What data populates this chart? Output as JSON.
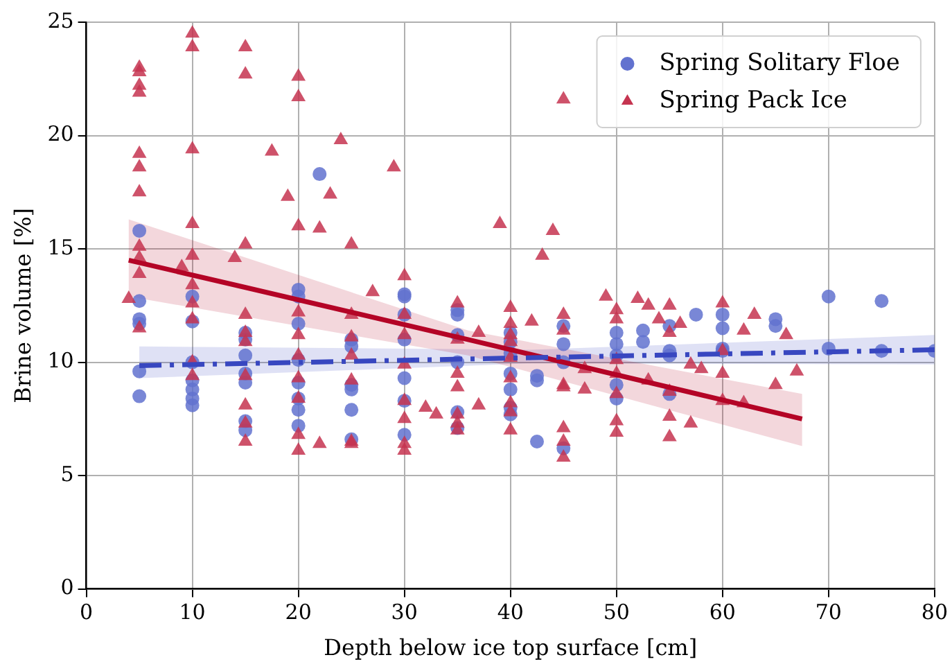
{
  "chart_data": {
    "type": "scatter",
    "xlabel": "Depth below ice top surface [cm]",
    "ylabel": "Brine volume [%]",
    "xlim": [
      0,
      80
    ],
    "xticks": [
      0,
      10,
      20,
      30,
      40,
      50,
      60,
      70,
      80
    ],
    "ylim": [
      0,
      25
    ],
    "yticks": [
      0,
      5,
      10,
      15,
      20,
      25
    ],
    "grid": true,
    "legend": "top right",
    "series": [
      {
        "name": "Spring Solitary Floe",
        "marker": "circle",
        "color": "#6272cf",
        "x": [
          5,
          5,
          5,
          5,
          5,
          5,
          10,
          10,
          10,
          10,
          10,
          10,
          10,
          15,
          15,
          15,
          15,
          15,
          15,
          15,
          20,
          20,
          20,
          20,
          20,
          20,
          20,
          20,
          22,
          25,
          25,
          25,
          25,
          25,
          25,
          30,
          30,
          30,
          30,
          30,
          30,
          30,
          35,
          35,
          35,
          35,
          35,
          35,
          40,
          40,
          40,
          40,
          40,
          40,
          40,
          42.5,
          42.5,
          42.5,
          45,
          45,
          45,
          45,
          50,
          50,
          50,
          50,
          50,
          52.5,
          52.5,
          55,
          55,
          55,
          55,
          57.5,
          60,
          60,
          60,
          60,
          65,
          65,
          70,
          70,
          75,
          75,
          80
        ],
        "values": [
          15.8,
          12.7,
          11.9,
          11.7,
          9.6,
          8.5,
          12.9,
          11.8,
          10.0,
          9.2,
          8.8,
          8.4,
          8.1,
          11.3,
          11.0,
          10.3,
          9.5,
          9.1,
          7.4,
          7.0,
          13.2,
          12.9,
          11.7,
          10.1,
          9.1,
          8.4,
          7.9,
          7.2,
          18.3,
          11.0,
          10.7,
          9.0,
          8.8,
          7.9,
          6.6,
          13.0,
          12.9,
          12.1,
          11.0,
          9.3,
          8.3,
          6.8,
          12.3,
          12.1,
          11.2,
          10.0,
          7.8,
          7.1,
          11.3,
          10.9,
          10.4,
          9.5,
          8.8,
          8.0,
          7.7,
          9.4,
          9.2,
          6.5,
          11.6,
          10.8,
          10.0,
          6.2,
          11.3,
          10.8,
          10.3,
          9.0,
          8.4,
          11.4,
          10.9,
          11.6,
          10.5,
          10.3,
          8.6,
          12.1,
          12.1,
          11.5,
          10.6,
          10.5,
          11.9,
          11.6,
          12.9,
          10.6,
          12.7,
          10.5,
          10.5
        ]
      },
      {
        "name": "Spring Pack Ice",
        "marker": "triangle",
        "color": "#c53450",
        "x": [
          4,
          5,
          5,
          5,
          5,
          5,
          5,
          5,
          5,
          5,
          5,
          5,
          9,
          10,
          10,
          10,
          10,
          10,
          10,
          10,
          10,
          10,
          10,
          14,
          15,
          15,
          15,
          15,
          15,
          15,
          15,
          15,
          15,
          15,
          17.5,
          19,
          20,
          20,
          20,
          20,
          20,
          20,
          20,
          20,
          20,
          20,
          22,
          22,
          23,
          24,
          25,
          25,
          25,
          25,
          25,
          25,
          25,
          27,
          29,
          30,
          30,
          30,
          30,
          30,
          30,
          30,
          30,
          32,
          33,
          35,
          35,
          35,
          35,
          35,
          35,
          35,
          37,
          37,
          39,
          40,
          40,
          40,
          40,
          40,
          40,
          40,
          40,
          40,
          42,
          43,
          44,
          45,
          45,
          45,
          45,
          45,
          45,
          45,
          45,
          47,
          47,
          49,
          50,
          50,
          50,
          50,
          50,
          50,
          50,
          52,
          53,
          53,
          54,
          55,
          55,
          55,
          55,
          55,
          56,
          57,
          57,
          58,
          60,
          60,
          60,
          60,
          62,
          62,
          63,
          65,
          66,
          67
        ],
        "values": [
          12.8,
          23.0,
          22.8,
          22.2,
          21.9,
          19.2,
          18.6,
          17.5,
          15.1,
          14.6,
          13.9,
          11.5,
          14.2,
          24.5,
          23.9,
          19.4,
          16.1,
          14.7,
          13.4,
          12.6,
          11.9,
          10.0,
          9.4,
          14.6,
          23.9,
          22.7,
          15.2,
          12.1,
          11.3,
          10.9,
          9.4,
          8.1,
          7.3,
          6.5,
          19.3,
          17.3,
          22.6,
          21.7,
          16.0,
          12.2,
          11.2,
          10.3,
          9.3,
          8.4,
          6.8,
          6.1,
          6.4,
          15.9,
          17.4,
          19.8,
          15.2,
          12.1,
          11.1,
          10.3,
          9.2,
          6.5,
          6.4,
          13.1,
          18.6,
          13.8,
          12.1,
          11.2,
          9.9,
          8.3,
          7.5,
          6.4,
          6.1,
          8.0,
          7.7,
          12.6,
          11.0,
          9.5,
          8.9,
          7.7,
          7.3,
          7.0,
          8.1,
          11.3,
          16.1,
          12.4,
          11.7,
          11.2,
          10.9,
          10.2,
          9.3,
          8.2,
          7.8,
          7.0,
          11.8,
          14.7,
          15.8,
          21.6,
          12.1,
          11.4,
          9.0,
          8.9,
          7.1,
          6.5,
          5.8,
          8.8,
          9.7,
          12.9,
          12.3,
          11.9,
          10.1,
          9.5,
          8.6,
          7.4,
          6.9,
          12.8,
          12.5,
          9.2,
          11.9,
          12.5,
          11.3,
          8.7,
          7.6,
          6.7,
          11.7,
          9.9,
          7.3,
          9.7,
          12.6,
          10.5,
          9.5,
          8.3,
          11.4,
          8.2,
          12.1,
          9.0,
          11.2,
          9.6
        ]
      },
      {
        "type": "line",
        "line_style": "dashed",
        "color": "#3847c0",
        "x": [
          5,
          42,
          80
        ],
        "values": [
          9.85,
          10.2,
          10.55
        ],
        "lower": [
          9.3,
          9.95,
          9.9
        ],
        "upper": [
          10.7,
          10.55,
          11.2
        ]
      },
      {
        "type": "line",
        "line_style": "solid",
        "color": "#b40426",
        "x": [
          4,
          36,
          67.5
        ],
        "values": [
          14.5,
          11.0,
          7.5
        ],
        "lower": [
          12.9,
          10.3,
          6.3
        ],
        "upper": [
          16.3,
          11.4,
          8.6
        ]
      }
    ]
  }
}
